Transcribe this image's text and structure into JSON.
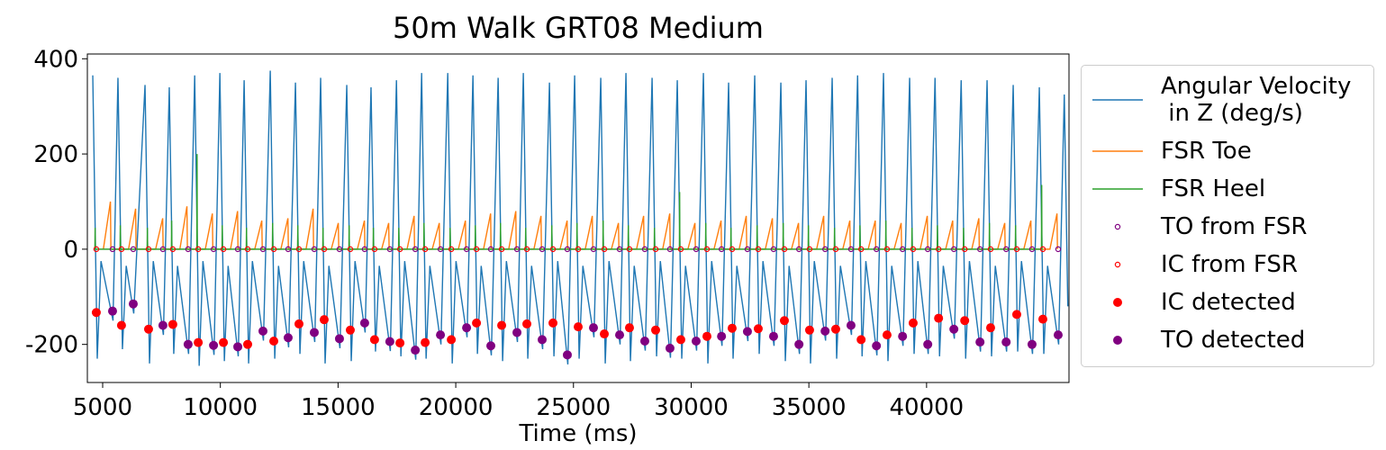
{
  "chart_data": {
    "type": "line",
    "title": "50m Walk GRT08 Medium",
    "x_label": "Time (ms)",
    "xlim": [
      4350,
      46050
    ],
    "ylim": [
      -280,
      410
    ],
    "xticks": [
      5000,
      10000,
      15000,
      20000,
      25000,
      30000,
      35000,
      40000
    ],
    "yticks": [
      -200,
      0,
      200,
      400
    ],
    "grid": false,
    "legend": "outside right",
    "series": [
      {
        "name": "Angular Velocity\n in Z (deg/s)",
        "color": "#1f77b4",
        "style": "line",
        "x": [
          4580,
          4770,
          4930,
          5440,
          5650,
          5840,
          6000,
          6320,
          6800,
          6990,
          7150,
          7580,
          7830,
          8020,
          8180,
          8650,
          8910,
          9100,
          9260,
          9730,
          9980,
          10170,
          10330,
          10760,
          11010,
          11200,
          11360,
          11830,
          12120,
          12310,
          12470,
          12900,
          13190,
          13380,
          13540,
          14010,
          14260,
          14450,
          14610,
          15080,
          15370,
          15560,
          15720,
          16150,
          16400,
          16590,
          16750,
          17220,
          17480,
          17670,
          17830,
          18300,
          18550,
          18740,
          18900,
          19370,
          19660,
          19850,
          20010,
          20480,
          20730,
          20920,
          21080,
          21510,
          21800,
          21990,
          22150,
          22620,
          22870,
          23060,
          23220,
          23690,
          23980,
          24170,
          24330,
          24760,
          25050,
          25240,
          25400,
          25870,
          26160,
          26350,
          26510,
          26980,
          27230,
          27420,
          27580,
          28050,
          28340,
          28530,
          28690,
          29120,
          29410,
          29600,
          29760,
          30230,
          30520,
          30710,
          30870,
          31310,
          31590,
          31780,
          31940,
          32410,
          32700,
          32890,
          33050,
          33520,
          33810,
          34000,
          34160,
          34600,
          34880,
          35070,
          35230,
          35710,
          35990,
          36180,
          36340,
          36810,
          37070,
          37260,
          37420,
          37890,
          38170,
          38360,
          38520,
          39000,
          39280,
          39470,
          39630,
          40070,
          40360,
          40550,
          40710,
          41180,
          41470,
          41660,
          41820,
          42290,
          42570,
          42760,
          42920,
          43400,
          43680,
          43870,
          44030,
          44500,
          44790,
          44980,
          45140,
          45610,
          45850,
          46000
        ],
        "values": [
          365,
          -230,
          -25,
          -150,
          360,
          -210,
          -35,
          -135,
          345,
          -240,
          -25,
          -180,
          340,
          -220,
          -35,
          -220,
          365,
          -245,
          -25,
          -222,
          370,
          -235,
          -35,
          -225,
          355,
          -240,
          -25,
          -192,
          375,
          -230,
          -35,
          -206,
          350,
          -220,
          -25,
          -195,
          360,
          -240,
          -35,
          -208,
          345,
          -235,
          -25,
          -175,
          340,
          -215,
          -35,
          -214,
          355,
          -225,
          -25,
          -232,
          370,
          -230,
          -35,
          -200,
          370,
          -240,
          -25,
          -185,
          365,
          -220,
          -35,
          -223,
          360,
          -235,
          -25,
          -195,
          370,
          -230,
          -35,
          -210,
          350,
          -225,
          -25,
          -242,
          365,
          -230,
          -35,
          -185,
          360,
          -240,
          -25,
          -200,
          370,
          -235,
          -35,
          -213,
          360,
          -225,
          -25,
          -228,
          355,
          -230,
          -35,
          -213,
          370,
          -240,
          -25,
          -203,
          350,
          -230,
          -35,
          -193,
          365,
          -220,
          -25,
          -203,
          350,
          -235,
          -35,
          -220,
          355,
          -240,
          -25,
          -192,
          360,
          -230,
          -35,
          -180,
          365,
          -225,
          -25,
          -223,
          370,
          -235,
          -35,
          -203,
          360,
          -220,
          -25,
          -220,
          360,
          -225,
          -35,
          -188,
          355,
          -230,
          -25,
          -215,
          355,
          -225,
          -35,
          -215,
          345,
          -215,
          -25,
          -220,
          340,
          -220,
          -35,
          -200,
          325,
          -120
        ]
      },
      {
        "name": "FSR Toe",
        "color": "#ff7f0e",
        "style": "line",
        "x": [
          5030,
          5330,
          5350,
          6100,
          6400,
          6420,
          7250,
          7550,
          7570,
          8280,
          8580,
          8600,
          9360,
          9660,
          9680,
          10430,
          10730,
          10750,
          11460,
          11760,
          11780,
          12570,
          12870,
          12890,
          13640,
          13940,
          13960,
          14710,
          15010,
          15030,
          15820,
          16120,
          16140,
          16850,
          17150,
          17170,
          17930,
          18230,
          18250,
          19000,
          19300,
          19320,
          20110,
          20410,
          20430,
          21180,
          21480,
          21500,
          22250,
          22550,
          22570,
          23320,
          23620,
          23640,
          24430,
          24730,
          24750,
          25500,
          25800,
          25820,
          26610,
          26910,
          26930,
          27680,
          27980,
          28000,
          28790,
          29090,
          29110,
          29860,
          30160,
          30180,
          30970,
          31270,
          31290,
          32040,
          32340,
          32360,
          33150,
          33450,
          33470,
          34260,
          34560,
          34580,
          35330,
          35630,
          35650,
          36440,
          36740,
          36760,
          37520,
          37820,
          37840,
          38620,
          38920,
          38940,
          39730,
          40030,
          40050,
          40810,
          41110,
          41130,
          41920,
          42220,
          42240,
          43020,
          43320,
          43340,
          44130,
          44430,
          44450,
          45240,
          45540,
          45560
        ],
        "values": [
          0,
          100,
          0,
          0,
          85,
          0,
          0,
          65,
          0,
          0,
          90,
          0,
          0,
          75,
          0,
          0,
          80,
          0,
          0,
          60,
          0,
          0,
          65,
          0,
          0,
          85,
          0,
          0,
          55,
          0,
          0,
          60,
          0,
          0,
          55,
          0,
          0,
          70,
          0,
          0,
          55,
          0,
          0,
          60,
          0,
          0,
          75,
          0,
          0,
          80,
          0,
          0,
          70,
          0,
          0,
          60,
          0,
          0,
          70,
          0,
          0,
          55,
          0,
          0,
          70,
          0,
          0,
          75,
          0,
          0,
          55,
          0,
          0,
          60,
          0,
          0,
          70,
          0,
          0,
          65,
          0,
          0,
          55,
          0,
          0,
          70,
          0,
          0,
          60,
          0,
          0,
          60,
          0,
          0,
          55,
          0,
          0,
          70,
          0,
          0,
          60,
          0,
          0,
          65,
          0,
          0,
          55,
          0,
          0,
          60,
          0,
          0,
          75,
          0
        ]
      },
      {
        "name": "FSR Heel",
        "color": "#2ca02c",
        "style": "line",
        "x": [
          4670,
          4680,
          4690,
          5740,
          5750,
          5760,
          6890,
          6900,
          6910,
          7920,
          7930,
          7940,
          9000,
          9010,
          9020,
          10070,
          10080,
          10090,
          11100,
          11110,
          11120,
          12210,
          12220,
          12230,
          13280,
          13290,
          13300,
          14350,
          14360,
          14370,
          15460,
          15470,
          15480,
          16490,
          16500,
          16510,
          17570,
          17580,
          17590,
          18640,
          18650,
          18660,
          19750,
          19760,
          19770,
          20820,
          20830,
          20840,
          21890,
          21900,
          21910,
          22960,
          22970,
          22980,
          24070,
          24080,
          24090,
          25140,
          25150,
          25160,
          26250,
          26260,
          26270,
          27320,
          27330,
          27340,
          28430,
          28440,
          28450,
          29500,
          29510,
          29520,
          30610,
          30620,
          30630,
          31680,
          31690,
          31700,
          32790,
          32800,
          32810,
          33900,
          33910,
          33920,
          34970,
          34980,
          34990,
          36080,
          36090,
          36100,
          37160,
          37170,
          37180,
          38260,
          38270,
          38280,
          39370,
          39380,
          39390,
          40450,
          40460,
          40470,
          41560,
          41570,
          41580,
          42660,
          42670,
          42680,
          43770,
          43780,
          43790,
          44880,
          44890,
          44900
        ],
        "values": [
          0,
          45,
          0,
          0,
          50,
          0,
          0,
          45,
          0,
          0,
          60,
          0,
          0,
          200,
          0,
          0,
          50,
          0,
          0,
          45,
          0,
          0,
          55,
          0,
          0,
          50,
          0,
          0,
          45,
          0,
          0,
          50,
          0,
          0,
          45,
          0,
          0,
          45,
          0,
          0,
          55,
          0,
          0,
          45,
          0,
          0,
          50,
          0,
          0,
          55,
          0,
          0,
          45,
          0,
          0,
          50,
          0,
          0,
          55,
          0,
          0,
          60,
          0,
          0,
          50,
          0,
          0,
          45,
          0,
          0,
          120,
          0,
          0,
          55,
          0,
          0,
          45,
          0,
          0,
          50,
          0,
          0,
          55,
          0,
          0,
          50,
          0,
          0,
          45,
          0,
          0,
          50,
          0,
          0,
          60,
          0,
          0,
          45,
          0,
          0,
          50,
          0,
          0,
          45,
          0,
          0,
          55,
          0,
          0,
          50,
          0,
          0,
          135,
          0
        ]
      },
      {
        "name": "TO from FSR",
        "color": "#800080",
        "style": "open-circle",
        "x": [
          5420,
          6300,
          7560,
          8630,
          9710,
          10740,
          11810,
          12880,
          13990,
          15060,
          16130,
          17200,
          18280,
          19350,
          20460,
          21490,
          22600,
          23670,
          24740,
          25850,
          26960,
          28030,
          29100,
          30210,
          31290,
          32390,
          33500,
          34580,
          35690,
          36790,
          37870,
          38980,
          40050,
          41160,
          42270,
          43380,
          44480,
          45590
        ],
        "values": [
          0,
          0,
          0,
          0,
          0,
          0,
          0,
          0,
          0,
          0,
          0,
          0,
          0,
          0,
          0,
          0,
          0,
          0,
          0,
          0,
          0,
          0,
          0,
          0,
          0,
          0,
          0,
          0,
          0,
          0,
          0,
          0,
          0,
          0,
          0,
          0,
          0,
          0
        ]
      },
      {
        "name": "IC from FSR",
        "color": "#ff0000",
        "style": "open-circle",
        "x": [
          4730,
          5800,
          6950,
          7980,
          9060,
          10130,
          11160,
          12270,
          13340,
          14410,
          15520,
          16550,
          17630,
          18700,
          19810,
          20880,
          21950,
          23020,
          24130,
          25200,
          26310,
          27380,
          28490,
          29560,
          30670,
          31740,
          32850,
          33960,
          35030,
          36140,
          37220,
          38320,
          39430,
          40510,
          41620,
          42720,
          43830,
          44940
        ],
        "values": [
          0,
          0,
          0,
          0,
          0,
          0,
          0,
          0,
          0,
          0,
          0,
          0,
          0,
          0,
          0,
          0,
          0,
          0,
          0,
          0,
          0,
          0,
          0,
          0,
          0,
          0,
          0,
          0,
          0,
          0,
          0,
          0,
          0,
          0,
          0,
          0,
          0,
          0
        ]
      },
      {
        "name": "IC detected",
        "color": "#ff0000",
        "style": "filled-circle",
        "x": [
          4730,
          5800,
          6950,
          7980,
          9060,
          10130,
          11160,
          12270,
          13340,
          14410,
          15520,
          16550,
          17630,
          18700,
          19810,
          20880,
          21950,
          23020,
          24130,
          25200,
          26310,
          27380,
          28490,
          29560,
          30670,
          31740,
          32850,
          33960,
          35030,
          36140,
          37220,
          38320,
          39430,
          40510,
          41620,
          42720,
          43830,
          44940
        ],
        "values": [
          -133,
          -160,
          -168,
          -158,
          -196,
          -196,
          -200,
          -193,
          -157,
          -148,
          -170,
          -190,
          -197,
          -196,
          -190,
          -155,
          -160,
          -157,
          -155,
          -163,
          -178,
          -165,
          -170,
          -190,
          -183,
          -166,
          -167,
          -150,
          -170,
          -168,
          -190,
          -180,
          -155,
          -145,
          -150,
          -165,
          -137,
          -147
        ]
      },
      {
        "name": "TO detected",
        "color": "#800080",
        "style": "filled-circle",
        "x": [
          5420,
          6300,
          7560,
          8630,
          9710,
          10740,
          11810,
          12880,
          13990,
          15060,
          16130,
          17200,
          18280,
          19350,
          20460,
          21490,
          22600,
          23670,
          24740,
          25850,
          26960,
          28030,
          29100,
          30210,
          31290,
          32390,
          33500,
          34580,
          35690,
          36790,
          37870,
          38980,
          40050,
          41160,
          42270,
          43380,
          44480,
          45590
        ],
        "values": [
          -130,
          -115,
          -160,
          -200,
          -202,
          -205,
          -172,
          -186,
          -175,
          -188,
          -155,
          -194,
          -212,
          -180,
          -165,
          -203,
          -175,
          -190,
          -222,
          -165,
          -180,
          -193,
          -208,
          -193,
          -183,
          -173,
          -183,
          -200,
          -172,
          -160,
          -203,
          -183,
          -200,
          -168,
          -195,
          -195,
          -200,
          -180
        ]
      }
    ]
  }
}
